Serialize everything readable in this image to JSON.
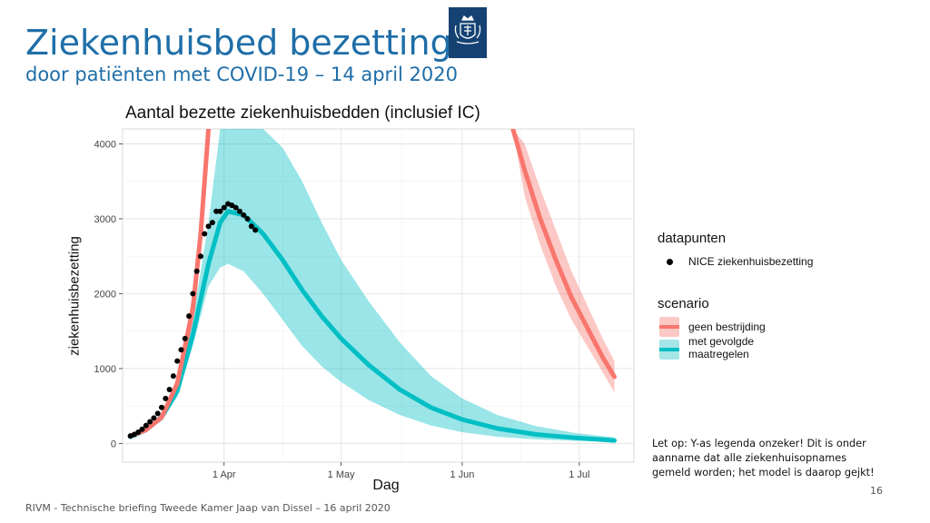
{
  "slide": {
    "title": "Ziekenhuisbed bezetting",
    "subtitle": "door patiënten met COVID-19 – 14 april 2020",
    "footer": "RIVM - Technische briefing Tweede Kamer Jaap van Dissel – 16 april 2020",
    "page_number": "16",
    "note": "Let op: Y-as legenda onzeker! Dit is onder aanname dat alle ziekenhuisopnames gemeld worden; het model is daarop gejkt!",
    "logo_icon": "coat-of-arms-icon"
  },
  "legend": {
    "data_title": "datapunten",
    "data_label": "NICE ziekenhuisbezetting",
    "scenario_title": "scenario",
    "scenario_labels": [
      "geen bestrijding",
      "met gevolgde maatregelen"
    ]
  },
  "chart_data": {
    "type": "line",
    "title": "Aantal bezette ziekenhuisbedden (inclusief IC)",
    "xlabel": "Dag",
    "ylabel": "ziekenhuisbezetting",
    "x_unit": "date (2020)",
    "xlim": [
      "2020-03-06",
      "2020-07-15"
    ],
    "ylim": [
      -250,
      4200
    ],
    "x_ticks": [
      {
        "date": "2020-04-01",
        "label": "1 Apr"
      },
      {
        "date": "2020-05-01",
        "label": "1 May"
      },
      {
        "date": "2020-06-01",
        "label": "1 Jun"
      },
      {
        "date": "2020-07-01",
        "label": "1 Jul"
      }
    ],
    "y_ticks": [
      0,
      1000,
      2000,
      3000,
      4000
    ],
    "grid": true,
    "legend_position": "right",
    "colors": {
      "geen_bestrijding": "#f8766d",
      "met_gevolgde_maatregelen": "#00bfc4",
      "datapunten": "#000000"
    },
    "series": [
      {
        "name": "geen bestrijding",
        "segments": [
          {
            "x": [
              "2020-03-08",
              "2020-03-12",
              "2020-03-16",
              "2020-03-20",
              "2020-03-24",
              "2020-03-26",
              "2020-03-28"
            ],
            "y": [
              100,
              180,
              350,
              800,
              1800,
              2800,
              4200
            ],
            "lower": [
              90,
              160,
              320,
              720,
              1600,
              2500,
              3800
            ],
            "upper": [
              110,
              200,
              380,
              880,
              2000,
              3100,
              4200
            ]
          },
          {
            "x": [
              "2020-06-14",
              "2020-06-17",
              "2020-06-21",
              "2020-06-25",
              "2020-06-29",
              "2020-07-03",
              "2020-07-07",
              "2020-07-10"
            ],
            "y": [
              4200,
              3650,
              3000,
              2450,
              1950,
              1550,
              1150,
              890
            ],
            "lower": [
              4200,
              3300,
              2650,
              2100,
              1650,
              1300,
              950,
              680
            ],
            "upper": [
              4200,
              4000,
              3400,
              2850,
              2300,
              1850,
              1400,
              1100
            ]
          }
        ]
      },
      {
        "name": "met gevolgde maatregelen",
        "x": [
          "2020-03-08",
          "2020-03-12",
          "2020-03-16",
          "2020-03-20",
          "2020-03-24",
          "2020-03-28",
          "2020-03-31",
          "2020-04-02",
          "2020-04-06",
          "2020-04-11",
          "2020-04-16",
          "2020-04-21",
          "2020-04-26",
          "2020-05-01",
          "2020-05-08",
          "2020-05-16",
          "2020-05-24",
          "2020-06-01",
          "2020-06-10",
          "2020-06-20",
          "2020-06-30",
          "2020-07-10"
        ],
        "y": [
          90,
          180,
          350,
          700,
          1450,
          2400,
          2950,
          3100,
          3050,
          2800,
          2450,
          2050,
          1700,
          1400,
          1050,
          720,
          480,
          320,
          200,
          120,
          75,
          40
        ],
        "lower": [
          80,
          160,
          300,
          620,
          1300,
          2100,
          2350,
          2400,
          2300,
          2000,
          1650,
          1300,
          1030,
          820,
          580,
          380,
          240,
          150,
          90,
          55,
          35,
          20
        ],
        "upper": [
          100,
          210,
          400,
          800,
          1650,
          2950,
          4200,
          4200,
          4200,
          4200,
          3950,
          3500,
          2950,
          2450,
          1900,
          1350,
          900,
          600,
          380,
          230,
          140,
          80
        ]
      },
      {
        "name": "NICE ziekenhuisbezetting",
        "x": [
          "2020-03-08",
          "2020-03-09",
          "2020-03-10",
          "2020-03-11",
          "2020-03-12",
          "2020-03-13",
          "2020-03-14",
          "2020-03-15",
          "2020-03-16",
          "2020-03-17",
          "2020-03-18",
          "2020-03-19",
          "2020-03-20",
          "2020-03-21",
          "2020-03-22",
          "2020-03-23",
          "2020-03-24",
          "2020-03-25",
          "2020-03-26",
          "2020-03-27",
          "2020-03-28",
          "2020-03-29",
          "2020-03-30",
          "2020-03-31",
          "2020-04-01",
          "2020-04-02",
          "2020-04-03",
          "2020-04-04",
          "2020-04-05",
          "2020-04-06",
          "2020-04-07",
          "2020-04-08",
          "2020-04-09"
        ],
        "y": [
          100,
          120,
          150,
          190,
          240,
          290,
          340,
          400,
          480,
          600,
          720,
          900,
          1100,
          1250,
          1400,
          1700,
          2000,
          2300,
          2500,
          2800,
          2900,
          2950,
          3100,
          3100,
          3150,
          3200,
          3180,
          3150,
          3100,
          3050,
          3000,
          2900,
          2850
        ]
      }
    ]
  }
}
